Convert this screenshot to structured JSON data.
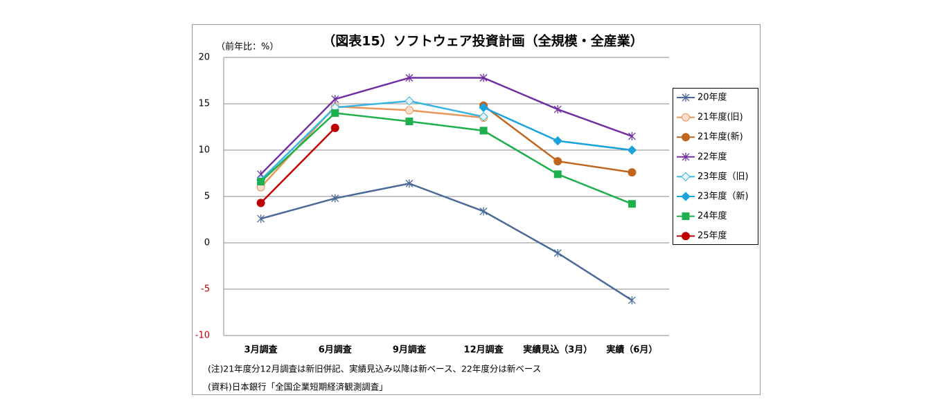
{
  "chart_data": {
    "type": "line",
    "title": "（図表15）ソフトウェア投資計画（全規模・全産業）",
    "y_axis_label": "（前年比：%）",
    "categories": [
      "3月調査",
      "6月調査",
      "9月調査",
      "12月調査",
      "実績見込（3月）",
      "実績（6月）"
    ],
    "series": [
      {
        "name": "20年度",
        "color": "#4a6a9a",
        "marker": "asterisk",
        "values": [
          2.6,
          4.8,
          6.4,
          3.4,
          -1.1,
          -6.2
        ]
      },
      {
        "name": "21年度(旧)",
        "color": "#e8955a",
        "marker": "open-circle",
        "values": [
          6.0,
          14.7,
          14.3,
          13.5,
          null,
          null
        ]
      },
      {
        "name": "21年度(新)",
        "color": "#c0661e",
        "marker": "circle",
        "values": [
          null,
          null,
          null,
          14.8,
          8.8,
          7.6
        ]
      },
      {
        "name": "22年度",
        "color": "#7030a0",
        "marker": "asterisk",
        "values": [
          7.4,
          15.5,
          17.8,
          17.8,
          14.4,
          11.5
        ]
      },
      {
        "name": "23年度（旧)",
        "color": "#3ab4e0",
        "marker": "open-diamond",
        "values": [
          6.8,
          14.6,
          15.3,
          13.6,
          null,
          null
        ]
      },
      {
        "name": "23年度（新)",
        "color": "#1aa3dc",
        "marker": "diamond",
        "values": [
          null,
          null,
          null,
          14.6,
          11.0,
          10.0
        ]
      },
      {
        "name": "24年度",
        "color": "#1db04d",
        "marker": "square",
        "values": [
          6.6,
          14.0,
          13.1,
          12.1,
          7.4,
          4.2
        ]
      },
      {
        "name": "25年度",
        "color": "#c00000",
        "marker": "circle",
        "values": [
          4.3,
          12.4,
          null,
          null,
          null,
          null
        ]
      }
    ],
    "ylim": [
      -10,
      20
    ],
    "yticks": [
      -10,
      -5,
      0,
      5,
      10,
      15,
      20
    ],
    "negative_tick_color": "#c00000",
    "grid": true,
    "legend": "right",
    "notes": [
      "(注)21年度分12月調査は新旧併記、実績見込み以降は新ベース、22年度分は新ベース",
      "(資料)日本銀行「全国企業短期経済観測調査」"
    ]
  }
}
